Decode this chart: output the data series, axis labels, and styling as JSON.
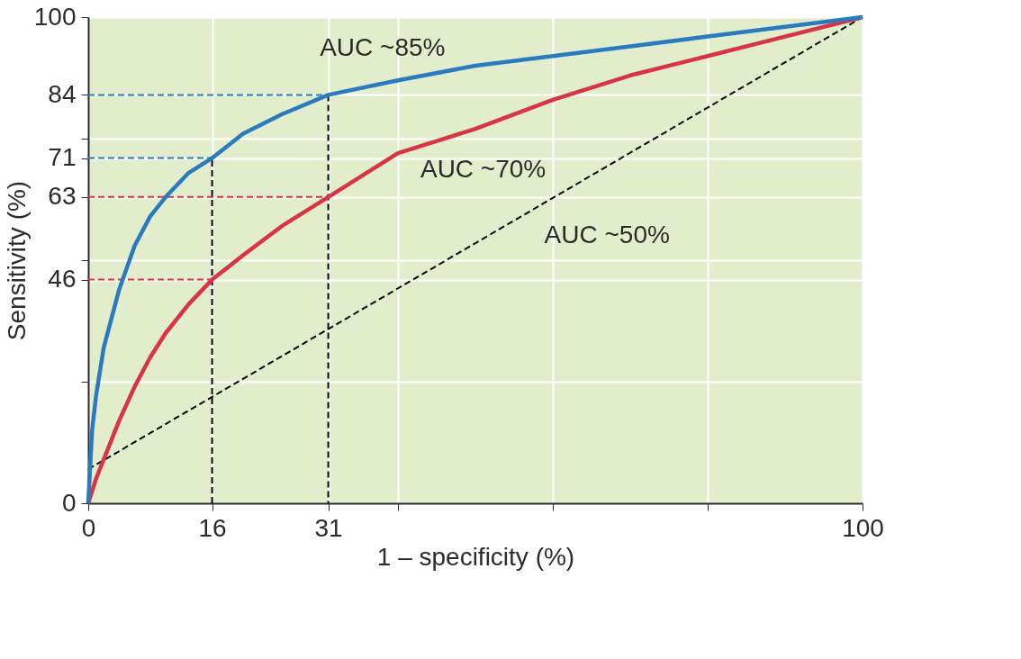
{
  "chart_data": {
    "type": "line",
    "xlabel": "1 – specificity (%)",
    "ylabel": "Sensitivity (%)",
    "xlim": [
      0,
      100
    ],
    "ylim": [
      0,
      100
    ],
    "xticks": [
      0,
      16,
      31,
      {
        "value": 40,
        "label": null
      },
      {
        "value": 60,
        "label": null
      },
      {
        "value": 80,
        "label": null
      },
      100
    ],
    "yticks": [
      0,
      {
        "value": 25,
        "label": null
      },
      46,
      {
        "value": 50,
        "label": null
      },
      63,
      71,
      {
        "value": 75,
        "label": null
      },
      84,
      100
    ],
    "grid": true,
    "series": [
      {
        "color": "#000000",
        "line_style": "dashed",
        "x": [
          0,
          100
        ],
        "values": [
          7,
          100
        ]
      },
      {
        "color": "#000000",
        "line_style": "dashed",
        "x": [
          16,
          16
        ],
        "values": [
          0,
          71
        ]
      },
      {
        "color": "#000000",
        "line_style": "dashed",
        "x": [
          31,
          31
        ],
        "values": [
          84,
          0
        ]
      },
      {
        "color": "#2a7abf",
        "line_style": "dashed",
        "x": [
          0,
          31
        ],
        "values": [
          84,
          84
        ]
      },
      {
        "color": "#2a7abf",
        "line_style": "dashed",
        "x": [
          0,
          16
        ],
        "values": [
          71,
          71
        ]
      },
      {
        "color": "#d93444",
        "line_style": "dashed",
        "x": [
          0,
          31
        ],
        "values": [
          63,
          63
        ]
      },
      {
        "color": "#d93444",
        "line_style": "dashed",
        "x": [
          0,
          16
        ],
        "values": [
          46,
          46
        ]
      },
      {
        "color": "#d93444",
        "line_style": "solid",
        "x": [
          0,
          1,
          2,
          4,
          6,
          8,
          10,
          13,
          16,
          20,
          25,
          31,
          40,
          50,
          60,
          70,
          80,
          90,
          100
        ],
        "values": [
          0,
          5,
          9,
          17,
          24,
          30,
          35,
          41,
          46,
          51,
          57,
          63,
          72,
          77,
          83,
          88,
          92,
          96,
          100
        ]
      },
      {
        "color": "#2a7abf",
        "line_style": "solid",
        "x": [
          0,
          0.5,
          1,
          2,
          4,
          6,
          8,
          10,
          13,
          16,
          20,
          25,
          31,
          40,
          50,
          60,
          70,
          80,
          90,
          100
        ],
        "values": [
          0,
          15,
          22,
          32,
          44,
          53,
          59,
          63,
          68,
          71,
          76,
          80,
          84,
          87,
          90,
          92,
          94,
          96,
          98,
          100
        ]
      }
    ],
    "annotations": [
      "AUC ~85%",
      "AUC ~70%",
      "AUC ~50%"
    ]
  }
}
